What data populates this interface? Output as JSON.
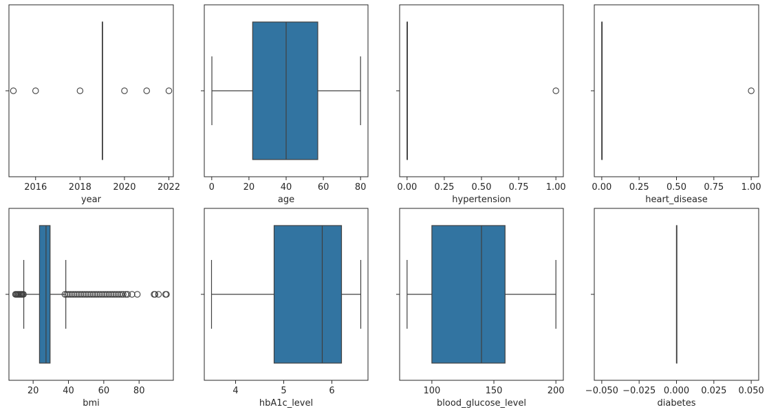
{
  "chart_data": [
    {
      "type": "boxplot",
      "xlabel": "year",
      "xlim": [
        2014.8,
        2022.2
      ],
      "xticks": [
        2016,
        2018,
        2020,
        2022
      ],
      "tick_labels": [
        "2016",
        "2018",
        "2020",
        "2022"
      ],
      "q1": 2019,
      "median": 2019,
      "q3": 2019,
      "whisker_low": 2019,
      "whisker_high": 2019,
      "outliers": [
        2015,
        2016,
        2018,
        2020,
        2021,
        2022
      ],
      "box_color": "#3274a1",
      "grid": false
    },
    {
      "type": "boxplot",
      "xlabel": "age",
      "xlim": [
        -4,
        84
      ],
      "xticks": [
        0,
        20,
        40,
        60,
        80
      ],
      "tick_labels": [
        "0",
        "20",
        "40",
        "60",
        "80"
      ],
      "q1": 22,
      "median": 40,
      "q3": 57,
      "whisker_low": 0.08,
      "whisker_high": 80,
      "outliers": [],
      "box_color": "#3274a1",
      "grid": false
    },
    {
      "type": "boxplot",
      "xlabel": "hypertension",
      "xlim": [
        -0.05,
        1.05
      ],
      "xticks": [
        0,
        0.25,
        0.5,
        0.75,
        1.0
      ],
      "tick_labels": [
        "0.00",
        "0.25",
        "0.50",
        "0.75",
        "1.00"
      ],
      "q1": 0,
      "median": 0,
      "q3": 0,
      "whisker_low": 0,
      "whisker_high": 0,
      "outliers": [
        1
      ],
      "box_color": "#3274a1",
      "grid": false
    },
    {
      "type": "boxplot",
      "xlabel": "heart_disease",
      "xlim": [
        -0.05,
        1.05
      ],
      "xticks": [
        0,
        0.25,
        0.5,
        0.75,
        1.0
      ],
      "tick_labels": [
        "0.00",
        "0.25",
        "0.50",
        "0.75",
        "1.00"
      ],
      "q1": 0,
      "median": 0,
      "q3": 0,
      "whisker_low": 0,
      "whisker_high": 0,
      "outliers": [
        1
      ],
      "box_color": "#3274a1",
      "grid": false
    },
    {
      "type": "boxplot",
      "xlabel": "bmi",
      "xlim": [
        6.3,
        99.4
      ],
      "xticks": [
        20,
        40,
        60,
        80
      ],
      "tick_labels": [
        "20",
        "40",
        "60",
        "80"
      ],
      "q1": 23.6,
      "median": 27.3,
      "q3": 29.6,
      "whisker_low": 14.7,
      "whisker_high": 38.5,
      "outliers": [
        10.0,
        10.5,
        11.0,
        11.5,
        12.0,
        12.5,
        13.0,
        13.5,
        14.0,
        14.5,
        38.0,
        39.0,
        40.0,
        41.0,
        42.0,
        43.0,
        44.0,
        45.0,
        46.0,
        47.0,
        48.0,
        49.0,
        50.0,
        51.0,
        52.0,
        53.0,
        54.0,
        55.0,
        56.0,
        57.0,
        58.0,
        59.0,
        60.0,
        61.0,
        62.0,
        63.0,
        64.0,
        65.0,
        66.0,
        67.0,
        68.0,
        69.0,
        70.0,
        71.0,
        72.5,
        73.5,
        76.0,
        79.0,
        88.5,
        89.0,
        91.0,
        95.0,
        95.5
      ],
      "box_color": "#3274a1",
      "grid": false
    },
    {
      "type": "boxplot",
      "xlabel": "hbA1c_level",
      "xlim": [
        3.35,
        6.75
      ],
      "xticks": [
        4,
        5,
        6
      ],
      "tick_labels": [
        "4",
        "5",
        "6"
      ],
      "q1": 4.8,
      "median": 5.8,
      "q3": 6.2,
      "whisker_low": 3.5,
      "whisker_high": 6.6,
      "outliers": [],
      "box_color": "#3274a1",
      "grid": false
    },
    {
      "type": "boxplot",
      "xlabel": "blood_glucose_level",
      "xlim": [
        74,
        206
      ],
      "xticks": [
        100,
        150,
        200
      ],
      "tick_labels": [
        "100",
        "150",
        "200"
      ],
      "q1": 100,
      "median": 140,
      "q3": 159,
      "whisker_low": 80,
      "whisker_high": 200,
      "outliers": [],
      "box_color": "#3274a1",
      "grid": false
    },
    {
      "type": "boxplot",
      "xlabel": "diabetes",
      "xlim": [
        -0.055,
        0.055
      ],
      "xticks": [
        -0.05,
        -0.025,
        0,
        0.025,
        0.05
      ],
      "tick_labels": [
        "−0.050",
        "−0.025",
        "0.000",
        "0.025",
        "0.050"
      ],
      "q1": 0,
      "median": 0,
      "q3": 0,
      "whisker_low": 0,
      "whisker_high": 0,
      "outliers": [],
      "box_color": "#3274a1",
      "grid": false
    }
  ]
}
